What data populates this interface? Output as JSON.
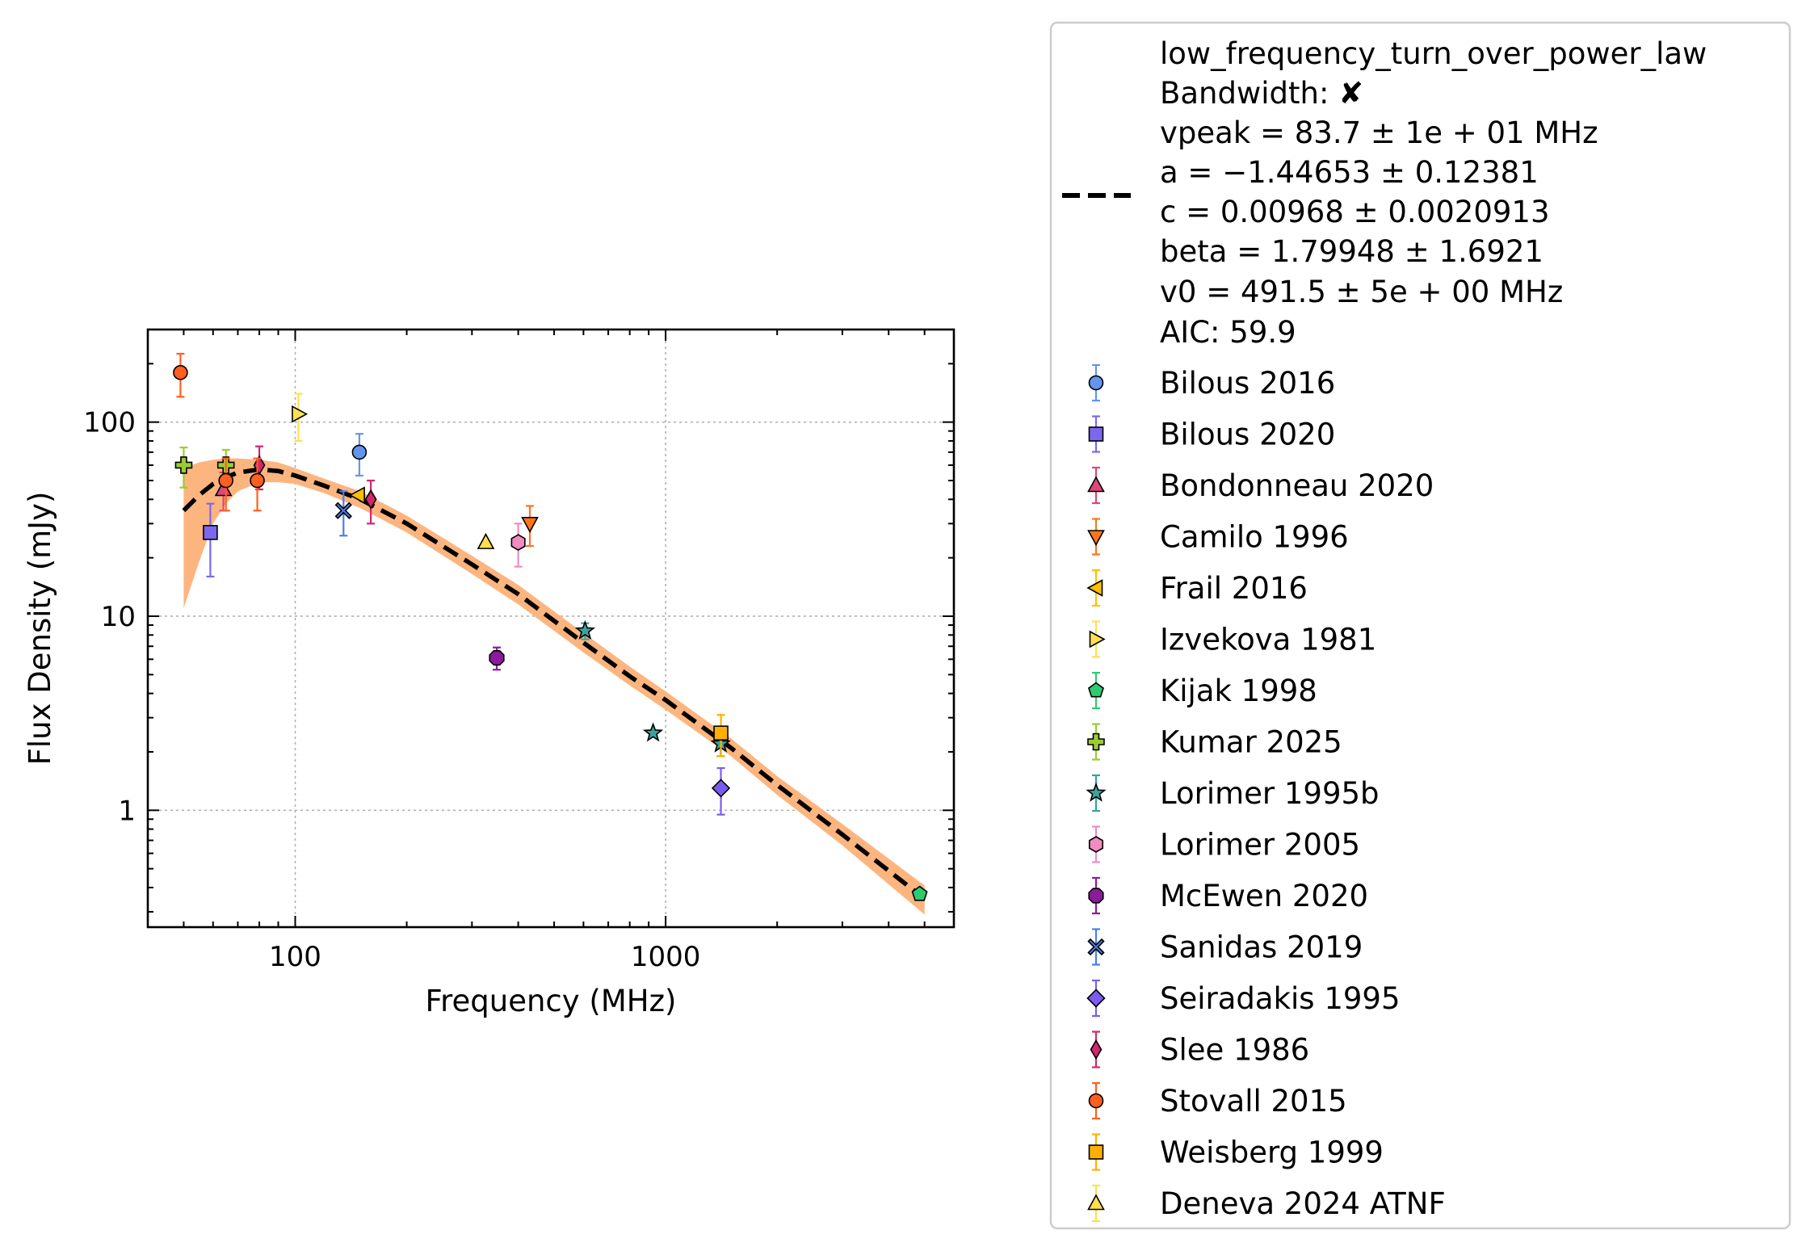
{
  "chart_data": {
    "type": "scatter",
    "xlabel": "Frequency (MHz)",
    "ylabel": "Flux Density (mJy)",
    "xscale": "log",
    "yscale": "log",
    "xlim": [
      40,
      6000
    ],
    "ylim": [
      0.25,
      300
    ],
    "xticks": [
      {
        "value": 100,
        "label": "100"
      },
      {
        "value": 1000,
        "label": "1000"
      }
    ],
    "yticks": [
      {
        "value": 1,
        "label": "1"
      },
      {
        "value": 10,
        "label": "10"
      },
      {
        "value": 100,
        "label": "100"
      }
    ],
    "grid": true,
    "legend_position": "outside-right",
    "fit": {
      "label_lines": [
        "low_frequency_turn_over_power_law",
        "Bandwidth: ✘",
        "vpeak = 83.7 ± 1e + 01 MHz",
        "a = −1.44653 ± 0.12381",
        "c = 0.00968 ± 0.0020913",
        "beta = 1.79948 ± 1.6921",
        "v0 = 491.5 ± 5e + 00 MHz",
        "AIC: 59.9"
      ],
      "curve": {
        "x": [
          50,
          55,
          60,
          65,
          70,
          80,
          90,
          100,
          120,
          150,
          200,
          300,
          400,
          600,
          800,
          1000,
          1500,
          2000,
          3000,
          5000
        ],
        "y": [
          35,
          42,
          48,
          52,
          55,
          57,
          56,
          53,
          47,
          40,
          30,
          18.5,
          13,
          7.3,
          4.9,
          3.7,
          2.1,
          1.35,
          0.75,
          0.35
        ]
      },
      "band": {
        "x": [
          50,
          55,
          60,
          65,
          70,
          80,
          90,
          100,
          120,
          150,
          200,
          300,
          400,
          600,
          800,
          1000,
          1500,
          2000,
          3000,
          5000
        ],
        "lower": [
          11,
          19,
          30,
          38,
          44,
          49,
          49,
          48,
          43,
          36,
          27,
          16.5,
          11.5,
          6.5,
          4.4,
          3.3,
          1.9,
          1.2,
          0.66,
          0.29
        ],
        "upper": [
          58,
          62,
          64,
          65,
          65,
          64,
          62,
          58,
          51,
          44,
          33,
          20.5,
          14.5,
          8.2,
          5.5,
          4.1,
          2.35,
          1.5,
          0.85,
          0.41
        ]
      },
      "line_color": "#000000",
      "band_color": "#fdb57f"
    },
    "series": [
      {
        "name": "Bilous 2016",
        "marker": "circle",
        "color": "#6495ed",
        "points": [
          {
            "x": 149,
            "y": 70,
            "err": 17
          }
        ]
      },
      {
        "name": "Bilous 2020",
        "marker": "square",
        "color": "#7b68ee",
        "points": [
          {
            "x": 59,
            "y": 27,
            "err": 11
          }
        ]
      },
      {
        "name": "Bondonneau 2020",
        "marker": "triangle-up",
        "color": "#e0457b",
        "points": [
          {
            "x": 64,
            "y": 45,
            "err": 10
          }
        ]
      },
      {
        "name": "Camilo 1996",
        "marker": "triangle-down",
        "color": "#ff7518",
        "points": [
          {
            "x": 430,
            "y": 30,
            "err": 7
          }
        ]
      },
      {
        "name": "Frail 2016",
        "marker": "triangle-left",
        "color": "#ffbf00",
        "points": [
          {
            "x": 148,
            "y": 42,
            "err": 0
          }
        ]
      },
      {
        "name": "Izvekova 1981",
        "marker": "triangle-right",
        "color": "#ffe050",
        "points": [
          {
            "x": 102,
            "y": 110,
            "err": 30
          }
        ]
      },
      {
        "name": "Kijak 1998",
        "marker": "pentagon",
        "color": "#2ecc71",
        "points": [
          {
            "x": 4850,
            "y": 0.37,
            "err": 0
          }
        ]
      },
      {
        "name": "Kumar 2025",
        "marker": "plus",
        "color": "#9acd32",
        "points": [
          {
            "x": 50,
            "y": 60,
            "err": 14
          },
          {
            "x": 65,
            "y": 60,
            "err": 12
          }
        ]
      },
      {
        "name": "Lorimer 1995b",
        "marker": "star",
        "color": "#3aa39c",
        "points": [
          {
            "x": 606,
            "y": 8.4,
            "err": 0.8
          },
          {
            "x": 925,
            "y": 2.5,
            "err": 0
          },
          {
            "x": 1408,
            "y": 2.2,
            "err": 0.3
          }
        ]
      },
      {
        "name": "Lorimer 2005",
        "marker": "hexagon",
        "color": "#f08cc0",
        "points": [
          {
            "x": 400,
            "y": 24,
            "err": 6
          }
        ]
      },
      {
        "name": "McEwen 2020",
        "marker": "octagon",
        "color": "#8b1a9c",
        "points": [
          {
            "x": 350,
            "y": 6.1,
            "err": 0.8
          }
        ]
      },
      {
        "name": "Sanidas 2019",
        "marker": "x",
        "color": "#4a7fe6",
        "points": [
          {
            "x": 135,
            "y": 35,
            "err": 9
          }
        ]
      },
      {
        "name": "Seiradakis 1995",
        "marker": "diamond",
        "color": "#7b5cf0",
        "points": [
          {
            "x": 1410,
            "y": 1.3,
            "err": 0.35
          }
        ]
      },
      {
        "name": "Slee 1986",
        "marker": "thin-diamond",
        "color": "#d4266e",
        "points": [
          {
            "x": 80,
            "y": 60,
            "err": 15
          },
          {
            "x": 160,
            "y": 40,
            "err": 10
          }
        ]
      },
      {
        "name": "Stovall 2015",
        "marker": "circle",
        "color": "#ff5f1f",
        "points": [
          {
            "x": 49,
            "y": 180,
            "err": 45
          },
          {
            "x": 65,
            "y": 50,
            "err": 15
          },
          {
            "x": 79,
            "y": 50,
            "err": 15
          }
        ]
      },
      {
        "name": "Weisberg 1999",
        "marker": "square",
        "color": "#ffb000",
        "points": [
          {
            "x": 1410,
            "y": 2.5,
            "err": 0.6
          }
        ]
      },
      {
        "name": "Deneva 2024 ATNF",
        "marker": "triangle-up",
        "color": "#ffe04a",
        "points": [
          {
            "x": 327,
            "y": 24,
            "err": 0
          }
        ]
      }
    ]
  }
}
